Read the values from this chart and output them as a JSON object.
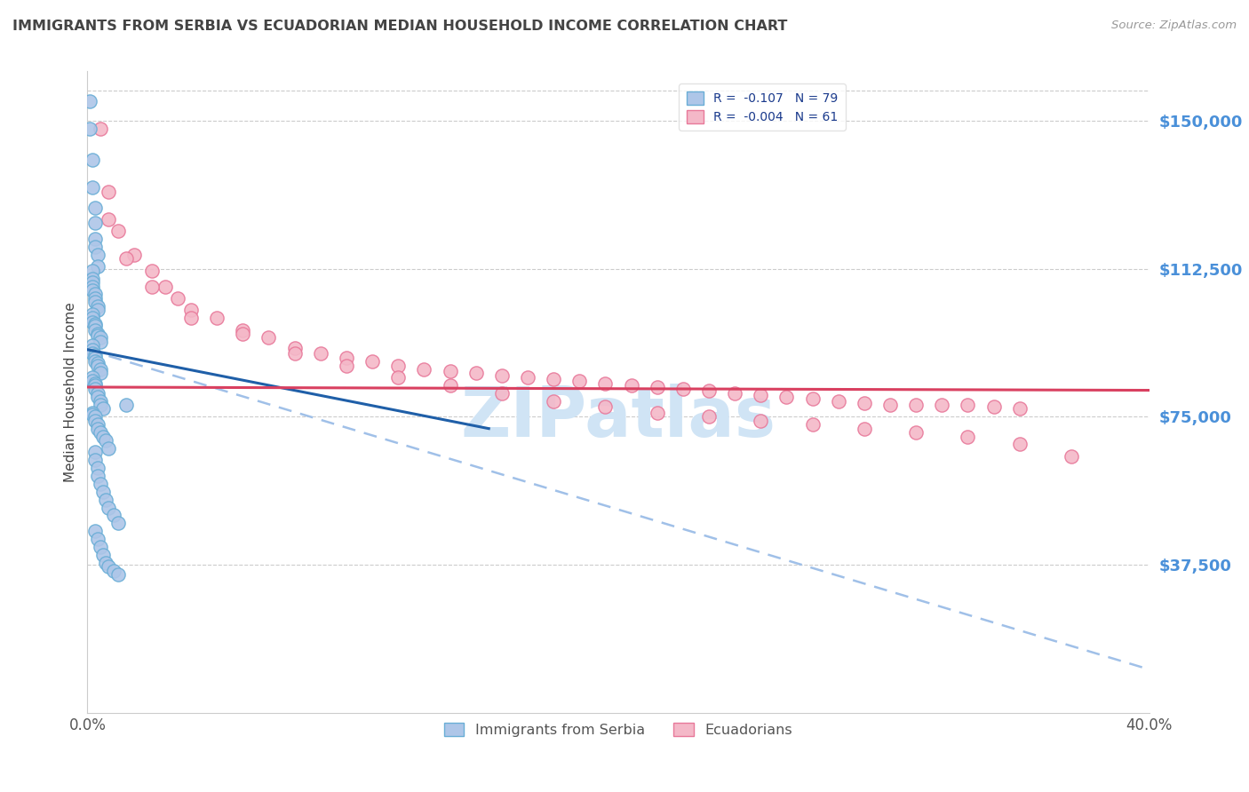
{
  "title": "IMMIGRANTS FROM SERBIA VS ECUADORIAN MEDIAN HOUSEHOLD INCOME CORRELATION CHART",
  "source": "Source: ZipAtlas.com",
  "ylabel": "Median Household Income",
  "ytick_labels": [
    "$37,500",
    "$75,000",
    "$112,500",
    "$150,000"
  ],
  "ytick_values": [
    37500,
    75000,
    112500,
    150000
  ],
  "ylim": [
    0,
    162500
  ],
  "xlim": [
    0.0,
    0.41
  ],
  "legend_entries": [
    {
      "label": "R =  -0.107   N = 79",
      "facecolor": "#aec6e8",
      "edgecolor": "#6aaed6"
    },
    {
      "label": "R =  -0.004   N = 61",
      "facecolor": "#f4b8c8",
      "edgecolor": "#e8799a"
    }
  ],
  "serbia_scatter_x": [
    0.001,
    0.001,
    0.002,
    0.002,
    0.003,
    0.003,
    0.003,
    0.003,
    0.004,
    0.004,
    0.002,
    0.002,
    0.002,
    0.002,
    0.002,
    0.003,
    0.003,
    0.003,
    0.004,
    0.004,
    0.002,
    0.002,
    0.002,
    0.003,
    0.003,
    0.003,
    0.004,
    0.004,
    0.005,
    0.005,
    0.002,
    0.002,
    0.002,
    0.003,
    0.003,
    0.003,
    0.004,
    0.004,
    0.005,
    0.005,
    0.002,
    0.002,
    0.003,
    0.003,
    0.003,
    0.004,
    0.004,
    0.005,
    0.005,
    0.006,
    0.002,
    0.002,
    0.003,
    0.003,
    0.004,
    0.004,
    0.005,
    0.006,
    0.007,
    0.008,
    0.003,
    0.003,
    0.004,
    0.004,
    0.005,
    0.006,
    0.007,
    0.008,
    0.01,
    0.012,
    0.003,
    0.004,
    0.005,
    0.006,
    0.007,
    0.008,
    0.01,
    0.012,
    0.015
  ],
  "serbia_scatter_y": [
    155000,
    148000,
    140000,
    133000,
    128000,
    124000,
    120000,
    118000,
    116000,
    113000,
    112000,
    110000,
    109000,
    108000,
    107000,
    106000,
    105000,
    104000,
    103000,
    102000,
    101000,
    100000,
    99000,
    98500,
    98000,
    97000,
    96000,
    95500,
    95000,
    94000,
    93000,
    92000,
    91000,
    90500,
    90000,
    89000,
    88500,
    88000,
    87000,
    86000,
    85000,
    84000,
    83500,
    83000,
    82000,
    81000,
    80000,
    79000,
    78000,
    77000,
    76000,
    75500,
    75000,
    74000,
    73000,
    72000,
    71000,
    70000,
    69000,
    67000,
    66000,
    64000,
    62000,
    60000,
    58000,
    56000,
    54000,
    52000,
    50000,
    48000,
    46000,
    44000,
    42000,
    40000,
    38000,
    37000,
    36000,
    35000,
    78000
  ],
  "ecuador_scatter_x": [
    0.005,
    0.008,
    0.012,
    0.018,
    0.025,
    0.03,
    0.035,
    0.04,
    0.05,
    0.06,
    0.07,
    0.08,
    0.09,
    0.1,
    0.11,
    0.12,
    0.13,
    0.14,
    0.15,
    0.16,
    0.17,
    0.18,
    0.19,
    0.2,
    0.21,
    0.22,
    0.23,
    0.24,
    0.25,
    0.26,
    0.27,
    0.28,
    0.29,
    0.3,
    0.31,
    0.32,
    0.33,
    0.34,
    0.35,
    0.36,
    0.008,
    0.015,
    0.025,
    0.04,
    0.06,
    0.08,
    0.1,
    0.12,
    0.14,
    0.16,
    0.18,
    0.2,
    0.22,
    0.24,
    0.26,
    0.28,
    0.3,
    0.32,
    0.34,
    0.36,
    0.38
  ],
  "ecuador_scatter_y": [
    148000,
    132000,
    122000,
    116000,
    112000,
    108000,
    105000,
    102000,
    100000,
    97000,
    95000,
    92500,
    91000,
    90000,
    89000,
    88000,
    87000,
    86500,
    86000,
    85500,
    85000,
    84500,
    84000,
    83500,
    83000,
    82500,
    82000,
    81500,
    81000,
    80500,
    80000,
    79500,
    79000,
    78500,
    78000,
    78000,
    78000,
    78000,
    77500,
    77000,
    125000,
    115000,
    108000,
    100000,
    96000,
    91000,
    88000,
    85000,
    83000,
    81000,
    79000,
    77500,
    76000,
    75000,
    74000,
    73000,
    72000,
    71000,
    70000,
    68000,
    65000
  ],
  "serbia_color_face": "#aec6e8",
  "serbia_color_edge": "#6aaed6",
  "ecuador_color_face": "#f4b8c8",
  "ecuador_color_edge": "#e8799a",
  "trend_serbia_solid_color": "#1f5fa8",
  "trend_ecuador_solid_color": "#d94060",
  "trend_dashed_color": "#a0c0e8",
  "watermark_text": "ZIPatlas",
  "watermark_color": "#d0e4f5",
  "background_color": "#ffffff",
  "grid_color": "#cccccc",
  "title_color": "#444444",
  "ylabel_color": "#444444",
  "axis_label_color": "#4a90d9",
  "tick_color": "#555555",
  "marker_size": 120,
  "serbia_trend_x0": 0.0,
  "serbia_trend_x1": 0.155,
  "serbia_trend_y0": 92000,
  "serbia_trend_y1": 72000,
  "ecuador_trend_y0": 82500,
  "ecuador_trend_y1": 81700,
  "dash_trend_y0": 92000,
  "dash_trend_y1": 11000
}
